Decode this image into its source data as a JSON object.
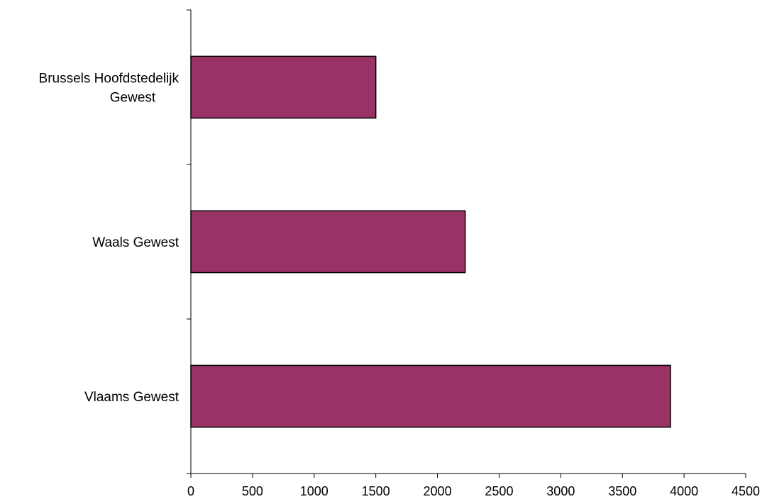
{
  "chart_data": {
    "type": "bar",
    "orientation": "horizontal",
    "title": "",
    "xlabel": "",
    "ylabel": "",
    "categories": [
      [
        "Brussels Hoofdstedelijk",
        "Gewest"
      ],
      [
        "Waals Gewest"
      ],
      [
        "Vlaams Gewest"
      ]
    ],
    "values": [
      1500,
      2225,
      3890
    ],
    "xlim": [
      0,
      4500
    ],
    "xticks": [
      0,
      500,
      1000,
      1500,
      2000,
      2500,
      3000,
      3500,
      4000,
      4500
    ],
    "xtick_labels": [
      "0",
      "500",
      "1000",
      "1500",
      "2000",
      "2500",
      "3000",
      "3500",
      "4000",
      "4500"
    ],
    "grid": false,
    "legend": "none",
    "bar_color": "#993366"
  }
}
